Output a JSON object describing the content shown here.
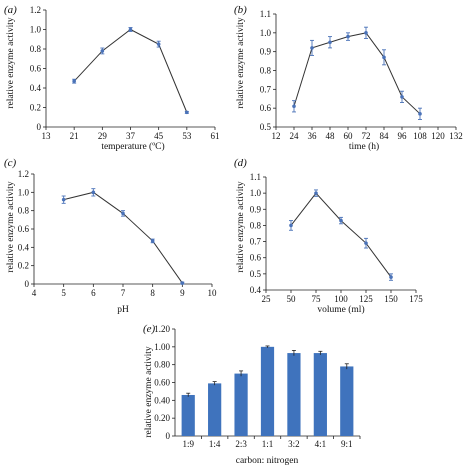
{
  "figure": {
    "panels": [
      "a",
      "b",
      "c",
      "d",
      "e"
    ]
  },
  "chart_data": [
    {
      "id": "a",
      "tag": "(a)",
      "type": "line",
      "x": [
        21,
        29,
        37,
        45,
        53
      ],
      "y": [
        0.47,
        0.78,
        1.0,
        0.85,
        0.15
      ],
      "err": [
        0.02,
        0.03,
        0.02,
        0.03,
        0.01
      ],
      "xticks": [
        13,
        21,
        29,
        37,
        45,
        53,
        61
      ],
      "yticks": [
        0,
        0.2,
        0.4,
        0.6,
        0.8,
        1.0,
        1.2
      ],
      "ytick_labels": [
        "0",
        "0.2",
        "0.4",
        "0.6",
        "0.8",
        "1.0",
        "1.2"
      ],
      "xlim": [
        13,
        61
      ],
      "ylim": [
        0,
        1.2
      ],
      "xlabel": "temperature (ºC)",
      "ylabel": "relative enzyme activity",
      "color": "#4a72b8"
    },
    {
      "id": "b",
      "tag": "(b)",
      "type": "line",
      "x": [
        24,
        36,
        48,
        60,
        72,
        84,
        96,
        108
      ],
      "y": [
        0.61,
        0.92,
        0.95,
        0.98,
        1.0,
        0.87,
        0.66,
        0.57
      ],
      "err": [
        0.03,
        0.04,
        0.03,
        0.02,
        0.03,
        0.04,
        0.03,
        0.03
      ],
      "xticks": [
        12,
        24,
        36,
        48,
        60,
        72,
        84,
        96,
        108,
        120,
        132
      ],
      "yticks": [
        0.5,
        0.6,
        0.7,
        0.8,
        0.9,
        1.0,
        1.1
      ],
      "ytick_labels": [
        "0.5",
        "0.6",
        "0.7",
        "0.8",
        "0.9",
        "1.0",
        "1.1"
      ],
      "xlim": [
        12,
        132
      ],
      "ylim": [
        0.5,
        1.1
      ],
      "xlabel": "time (h)",
      "ylabel": "relative enzyme activity",
      "color": "#4a72b8"
    },
    {
      "id": "c",
      "tag": "(c)",
      "type": "line",
      "x": [
        5,
        6,
        7,
        8,
        9
      ],
      "y": [
        0.92,
        1.0,
        0.77,
        0.47,
        0.01
      ],
      "err": [
        0.04,
        0.04,
        0.03,
        0.02,
        0.01
      ],
      "xticks": [
        4,
        5,
        6,
        7,
        8,
        9,
        10
      ],
      "yticks": [
        0,
        0.2,
        0.4,
        0.6,
        0.8,
        1.0,
        1.2
      ],
      "ytick_labels": [
        "0",
        "0.2",
        "0.4",
        "0.6",
        "0.8",
        "1.0",
        "1.2"
      ],
      "xlim": [
        4,
        10
      ],
      "ylim": [
        0,
        1.2
      ],
      "xlabel": "pH",
      "ylabel": "relative enzyme activity",
      "color": "#4a72b8"
    },
    {
      "id": "d",
      "tag": "(d)",
      "type": "line",
      "x": [
        50,
        75,
        100,
        125,
        150
      ],
      "y": [
        0.8,
        1.0,
        0.83,
        0.69,
        0.48
      ],
      "err": [
        0.03,
        0.02,
        0.02,
        0.03,
        0.02
      ],
      "xticks": [
        25,
        50,
        75,
        100,
        125,
        150,
        175
      ],
      "yticks": [
        0.4,
        0.5,
        0.6,
        0.7,
        0.8,
        0.9,
        1.0,
        1.1
      ],
      "ytick_labels": [
        "0.4",
        "0.5",
        "0.6",
        "0.7",
        "0.8",
        "0.9",
        "1.0",
        "1.1"
      ],
      "xlim": [
        25,
        175
      ],
      "ylim": [
        0.4,
        1.1
      ],
      "xlabel": "volume (ml)",
      "ylabel": "relative enzyme activity",
      "color": "#4a72b8"
    },
    {
      "id": "e",
      "tag": "(e)",
      "type": "bar",
      "categories": [
        "1:9",
        "1:4",
        "2:3",
        "1:1",
        "3:2",
        "4:1",
        "9:1"
      ],
      "values": [
        0.46,
        0.59,
        0.7,
        1.0,
        0.93,
        0.93,
        0.78
      ],
      "err": [
        0.02,
        0.02,
        0.03,
        0.01,
        0.03,
        0.02,
        0.03
      ],
      "yticks": [
        0,
        0.2,
        0.4,
        0.6,
        0.8,
        1.0,
        1.2
      ],
      "ytick_labels": [
        "0",
        "0.20",
        "0.40",
        "0.60",
        "0.80",
        "1.00",
        "1.20"
      ],
      "ylim": [
        0,
        1.2
      ],
      "xlabel": "carbon: nitrogen",
      "ylabel": "relative enzyme activity",
      "color": "#3f73bd"
    }
  ]
}
